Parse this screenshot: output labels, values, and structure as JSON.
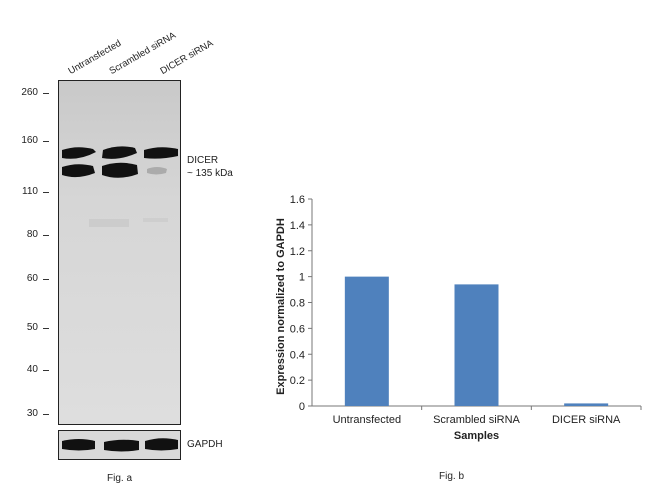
{
  "fig_a": {
    "lanes": [
      "Untransfected",
      "Scrambled siRNA",
      "DICER siRNA"
    ],
    "markers": [
      "260",
      "160",
      "110",
      "80",
      "60",
      "50",
      "40",
      "30"
    ],
    "band_label_1": "DICER",
    "band_label_2": "~ 135 kDa",
    "loading_label": "GAPDH",
    "caption": "Fig. a"
  },
  "fig_b": {
    "caption": "Fig. b"
  },
  "chart_data": {
    "type": "bar",
    "categories": [
      "Untransfected",
      "Scrambled siRNA",
      "DICER siRNA"
    ],
    "values": [
      1.0,
      0.94,
      0.02
    ],
    "title": "",
    "xlabel": "Samples",
    "ylabel": "Expression normalized to GAPDH",
    "ylim": [
      0,
      1.6
    ],
    "yticks": [
      "0",
      "0.2",
      "0.4",
      "0.6",
      "0.8",
      "1",
      "1.2",
      "1.4",
      "1.6"
    ],
    "bar_color": "#4F81BD",
    "grid": false,
    "legend": "none"
  }
}
